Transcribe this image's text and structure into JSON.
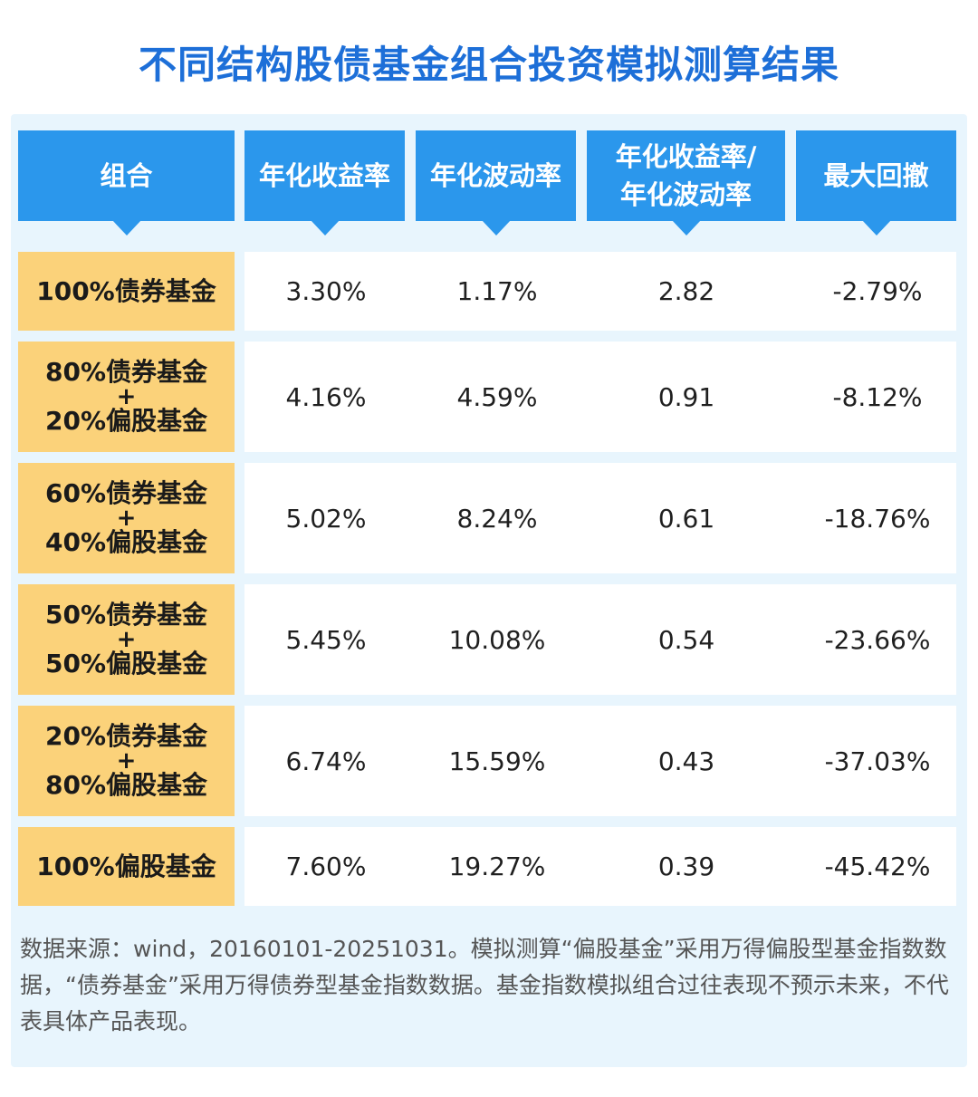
{
  "chart_data": {
    "type": "table",
    "title": "不同结构股债基金组合投资模拟测算结果",
    "columns": [
      "组合",
      "年化收益率",
      "年化波动率",
      "年化收益率/\n年化波动率",
      "最大回撤"
    ],
    "column_lines": [
      [
        "组合"
      ],
      [
        "年化收益率"
      ],
      [
        "年化波动率"
      ],
      [
        "年化收益率/",
        "年化波动率"
      ],
      [
        "最大回撤"
      ]
    ],
    "rows": [
      {
        "label_lines": [
          "100%债券基金"
        ],
        "values": [
          "3.30%",
          "1.17%",
          "2.82",
          "-2.79%"
        ]
      },
      {
        "label_lines": [
          "80%债券基金",
          "+",
          "20%偏股基金"
        ],
        "values": [
          "4.16%",
          "4.59%",
          "0.91",
          "-8.12%"
        ]
      },
      {
        "label_lines": [
          "60%债券基金",
          "+",
          "40%偏股基金"
        ],
        "values": [
          "5.02%",
          "8.24%",
          "0.61",
          "-18.76%"
        ]
      },
      {
        "label_lines": [
          "50%债券基金",
          "+",
          "50%偏股基金"
        ],
        "values": [
          "5.45%",
          "10.08%",
          "0.54",
          "-23.66%"
        ]
      },
      {
        "label_lines": [
          "20%债券基金",
          "+",
          "80%偏股基金"
        ],
        "values": [
          "6.74%",
          "15.59%",
          "0.43",
          "-37.03%"
        ]
      },
      {
        "label_lines": [
          "100%偏股基金"
        ],
        "values": [
          "7.60%",
          "19.27%",
          "0.39",
          "-45.42%"
        ]
      }
    ],
    "footnote": "数据来源：wind，20160101-20251031。模拟测算“偏股基金”采用万得偏股型基金指数数据，“债券基金”采用万得债券型基金指数数据。基金指数模拟组合过往表现不预示未来，不代表具体产品表现。"
  },
  "colors": {
    "title": "#1d6fd8",
    "header": "#2b97ec",
    "label": "#fbd27a",
    "panel": "#e8f5fd"
  }
}
